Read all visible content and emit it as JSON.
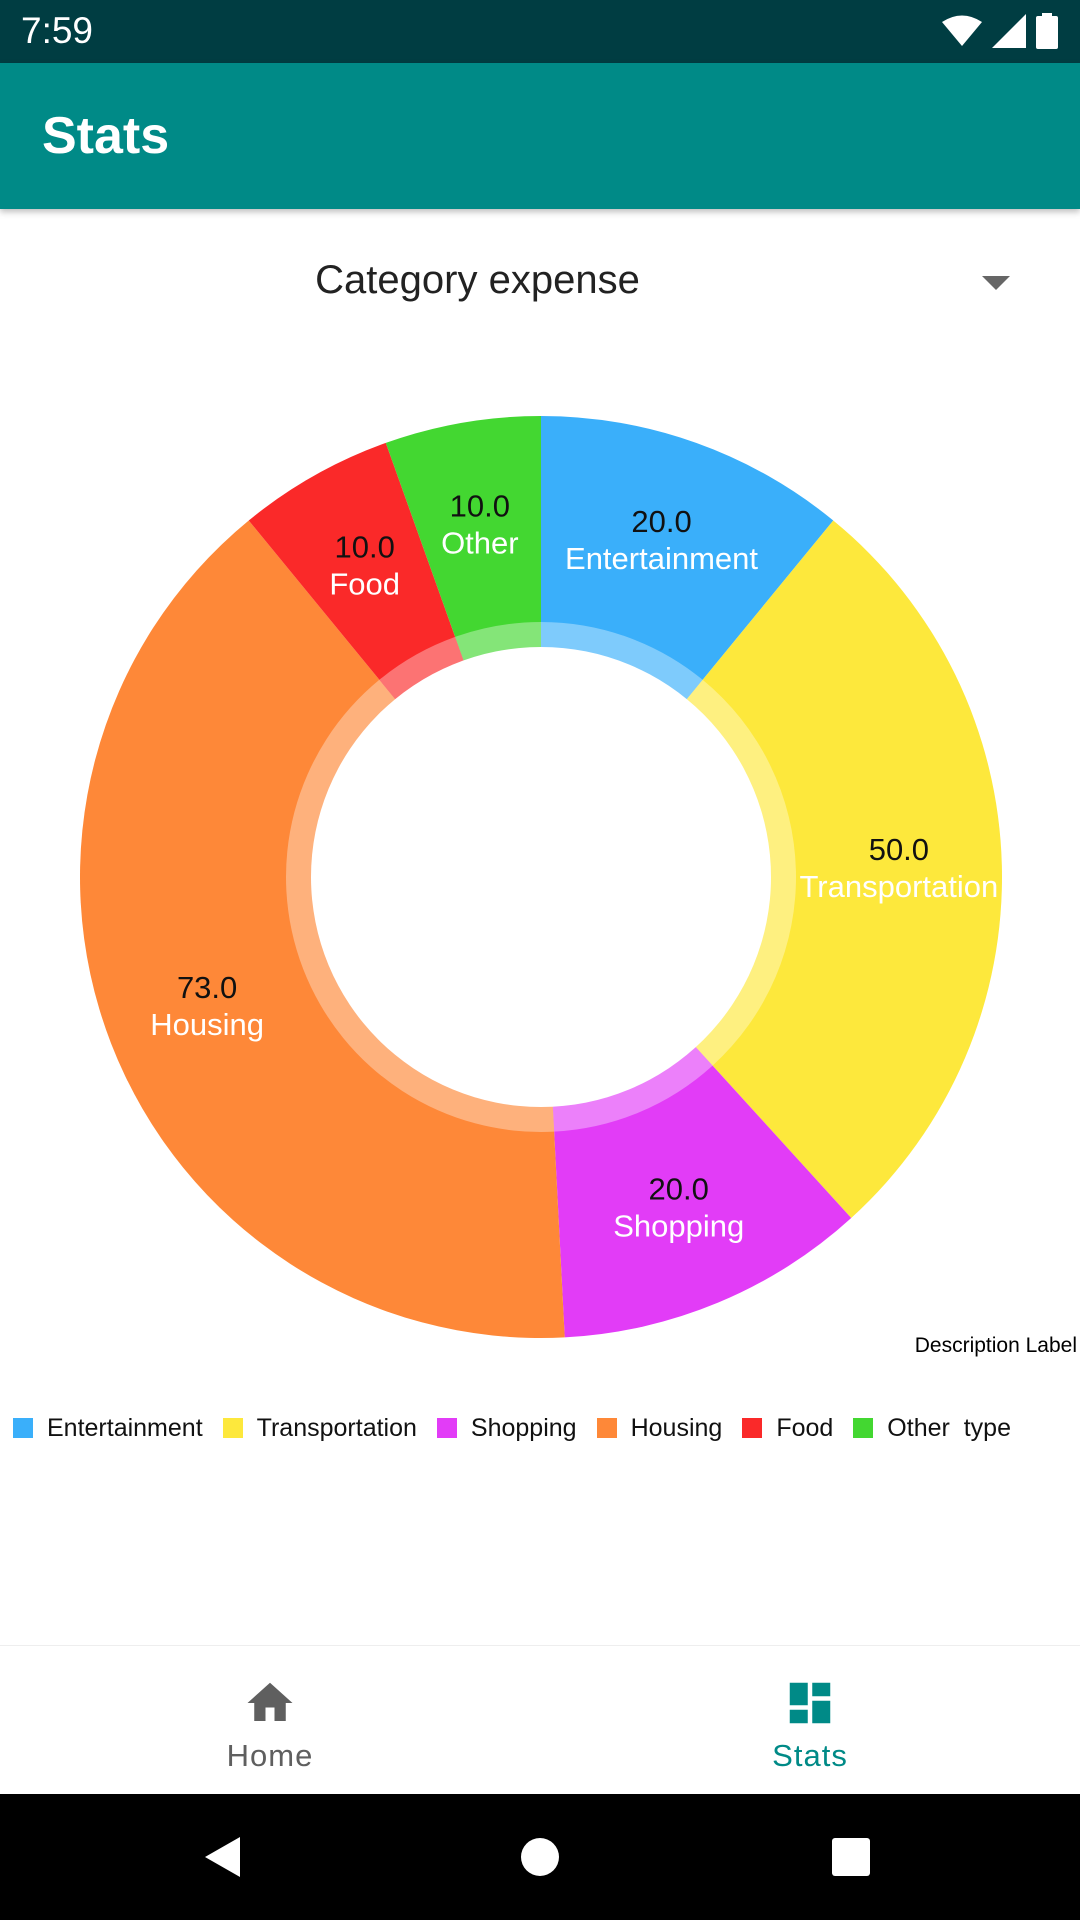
{
  "status_bar": {
    "time": "7:59"
  },
  "app_bar": {
    "title": "Stats"
  },
  "spinner": {
    "selected": "Category expense"
  },
  "chart_data": {
    "type": "pie",
    "categories": [
      "Entertainment",
      "Transportation",
      "Shopping",
      "Housing",
      "Food",
      "Other"
    ],
    "values": [
      20.0,
      50.0,
      20.0,
      73.0,
      10.0,
      10.0
    ],
    "value_labels": [
      "20.0",
      "50.0",
      "20.0",
      "73.0",
      "10.0",
      "10.0"
    ],
    "colors": [
      "#3aaffa",
      "#fde83c",
      "#e23cf7",
      "#fe8838",
      "#fa2929",
      "#43d731"
    ],
    "donut": true,
    "description": "Description Label",
    "legend": {
      "placement": "bottom-left",
      "entries": [
        "Entertainment",
        "Transportation",
        "Shopping",
        "Housing",
        "Food",
        "Other  type"
      ]
    }
  },
  "bottom_nav": {
    "items": [
      {
        "label": "Home",
        "icon": "home-icon",
        "active": false
      },
      {
        "label": "Stats",
        "icon": "dashboard-icon",
        "active": true
      }
    ],
    "active_color": "#008a87",
    "inactive_color": "#5f5f5f"
  },
  "colors": {
    "status_bar": "#003d42",
    "app_bar": "#008a87"
  }
}
